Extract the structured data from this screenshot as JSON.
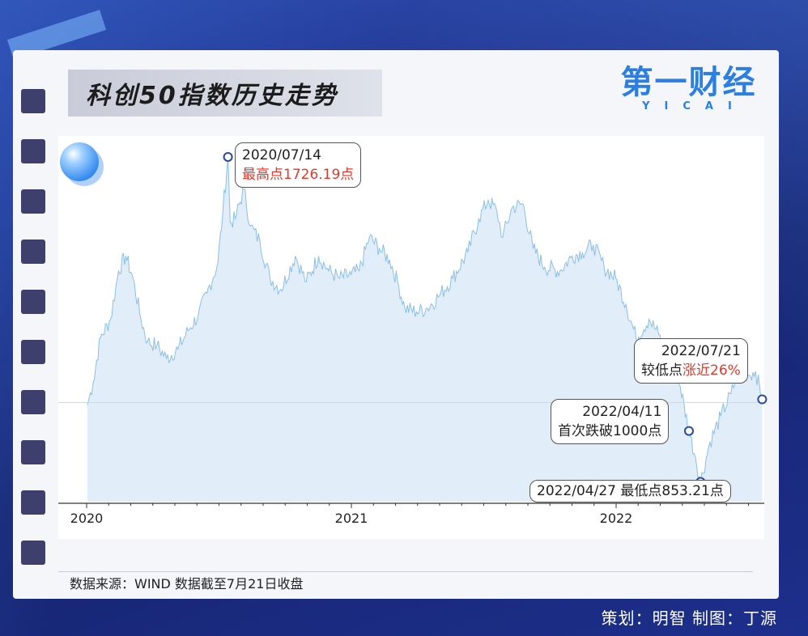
{
  "title": "科创50指数历史走势",
  "logo": {
    "main": "第一财经",
    "sub": "YICAI"
  },
  "source_text": "数据来源：WIND 数据截至7月21日收盘",
  "credit_text": "策划：明智 制图：丁源",
  "annotations": {
    "peak": {
      "date": "2020/07/14",
      "label": "最高点1726.19点"
    },
    "first_break": {
      "date": "2022/04/11",
      "label": "首次跌破1000点"
    },
    "low": {
      "label": "2022/04/27 最低点853.21点"
    },
    "latest": {
      "date": "2022/07/21",
      "label_prefix": "较低点",
      "label_highlight": "涨近26%"
    }
  },
  "colors": {
    "line": "#8bbfe6",
    "fill": "#dcebf8",
    "accent_red": "#e03a2c",
    "marker": "#2b4a9e"
  },
  "chart_data": {
    "type": "area",
    "title": "科创50指数历史走势",
    "xlabel": "",
    "ylabel": "",
    "x_ticks": [
      "2020",
      "2021",
      "2022"
    ],
    "ylim": [
      800,
      1800
    ],
    "grid": false,
    "series": [
      {
        "values": [
          [
            "2020-01-02",
            1060
          ],
          [
            "2020-01-10",
            1120
          ],
          [
            "2020-01-20",
            1240
          ],
          [
            "2020-02-03",
            1290
          ],
          [
            "2020-02-14",
            1420
          ],
          [
            "2020-02-24",
            1460
          ],
          [
            "2020-03-05",
            1400
          ],
          [
            "2020-03-16",
            1290
          ],
          [
            "2020-03-25",
            1230
          ],
          [
            "2020-04-07",
            1220
          ],
          [
            "2020-04-20",
            1185
          ],
          [
            "2020-05-06",
            1210
          ],
          [
            "2020-05-20",
            1260
          ],
          [
            "2020-06-03",
            1300
          ],
          [
            "2020-06-15",
            1360
          ],
          [
            "2020-06-30",
            1440
          ],
          [
            "2020-07-07",
            1580
          ],
          [
            "2020-07-14",
            1726.19
          ],
          [
            "2020-07-17",
            1550
          ],
          [
            "2020-07-24",
            1560
          ],
          [
            "2020-08-05",
            1640
          ],
          [
            "2020-08-14",
            1540
          ],
          [
            "2020-08-27",
            1500
          ],
          [
            "2020-09-10",
            1400
          ],
          [
            "2020-09-25",
            1370
          ],
          [
            "2020-10-15",
            1460
          ],
          [
            "2020-10-30",
            1390
          ],
          [
            "2020-11-16",
            1460
          ],
          [
            "2020-11-30",
            1420
          ],
          [
            "2020-12-15",
            1400
          ],
          [
            "2020-12-31",
            1410
          ],
          [
            "2021-01-11",
            1420
          ],
          [
            "2021-01-25",
            1510
          ],
          [
            "2021-02-08",
            1480
          ],
          [
            "2021-02-22",
            1450
          ],
          [
            "2021-03-05",
            1390
          ],
          [
            "2021-03-15",
            1320
          ],
          [
            "2021-03-31",
            1310
          ],
          [
            "2021-04-15",
            1320
          ],
          [
            "2021-04-30",
            1350
          ],
          [
            "2021-05-20",
            1400
          ],
          [
            "2021-06-10",
            1470
          ],
          [
            "2021-06-25",
            1560
          ],
          [
            "2021-07-08",
            1610
          ],
          [
            "2021-07-20",
            1580
          ],
          [
            "2021-07-28",
            1510
          ],
          [
            "2021-08-10",
            1590
          ],
          [
            "2021-08-25",
            1600
          ],
          [
            "2021-09-08",
            1480
          ],
          [
            "2021-09-24",
            1430
          ],
          [
            "2021-10-15",
            1420
          ],
          [
            "2021-11-01",
            1460
          ],
          [
            "2021-11-15",
            1470
          ],
          [
            "2021-11-30",
            1490
          ],
          [
            "2021-12-15",
            1430
          ],
          [
            "2021-12-31",
            1400
          ],
          [
            "2022-01-14",
            1330
          ],
          [
            "2022-01-28",
            1240
          ],
          [
            "2022-02-15",
            1290
          ],
          [
            "2022-02-28",
            1250
          ],
          [
            "2022-03-15",
            1180
          ],
          [
            "2022-03-30",
            1110
          ],
          [
            "2022-04-11",
            990
          ],
          [
            "2022-04-20",
            920
          ],
          [
            "2022-04-27",
            853.21
          ],
          [
            "2022-05-10",
            960
          ],
          [
            "2022-05-25",
            1030
          ],
          [
            "2022-06-08",
            1090
          ],
          [
            "2022-06-20",
            1160
          ],
          [
            "2022-07-01",
            1140
          ],
          [
            "2022-07-12",
            1150
          ],
          [
            "2022-07-21",
            1075
          ]
        ]
      }
    ],
    "annotations": [
      {
        "date": "2020-07-14",
        "value": 1726.19
      },
      {
        "date": "2022-04-11",
        "value": 990
      },
      {
        "date": "2022-04-27",
        "value": 853.21
      },
      {
        "date": "2022-07-21",
        "value": 1075
      }
    ]
  }
}
